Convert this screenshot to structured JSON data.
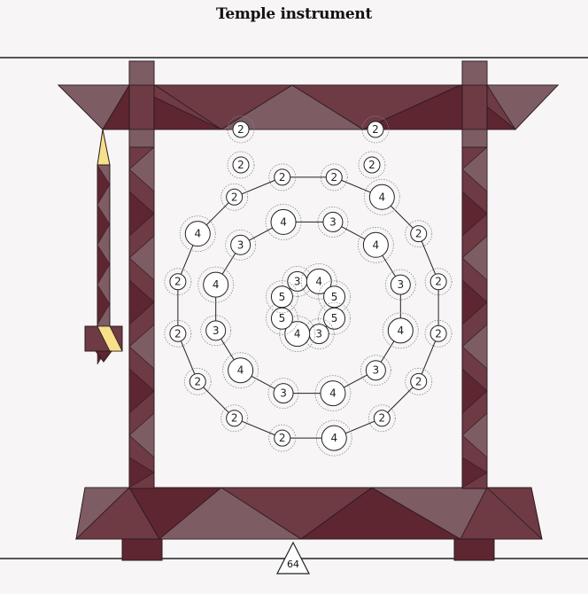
{
  "title": "Temple instrument",
  "score": "64",
  "colors": {
    "frame_dark": "#5e2630",
    "frame_mid": "#6e3a44",
    "frame_light": "#7d5c64",
    "stroke": "#2a1a1e",
    "accent": "#f7e08a",
    "node_fill": "#ffffff"
  },
  "rings": [
    {
      "ring": "outer",
      "values": [
        2,
        2,
        4,
        2,
        2,
        2,
        2,
        2,
        4,
        2,
        2,
        2,
        2,
        2,
        4,
        2
      ]
    },
    {
      "ring": "middle",
      "values": [
        4,
        3,
        4,
        3,
        4,
        3,
        4,
        3,
        4,
        3,
        4,
        3
      ]
    },
    {
      "ring": "inner",
      "values": [
        3,
        4,
        5,
        5,
        3,
        4,
        5,
        5
      ]
    },
    {
      "ring": "outer-top-ends",
      "values": [
        2,
        2,
        2,
        2
      ]
    }
  ]
}
